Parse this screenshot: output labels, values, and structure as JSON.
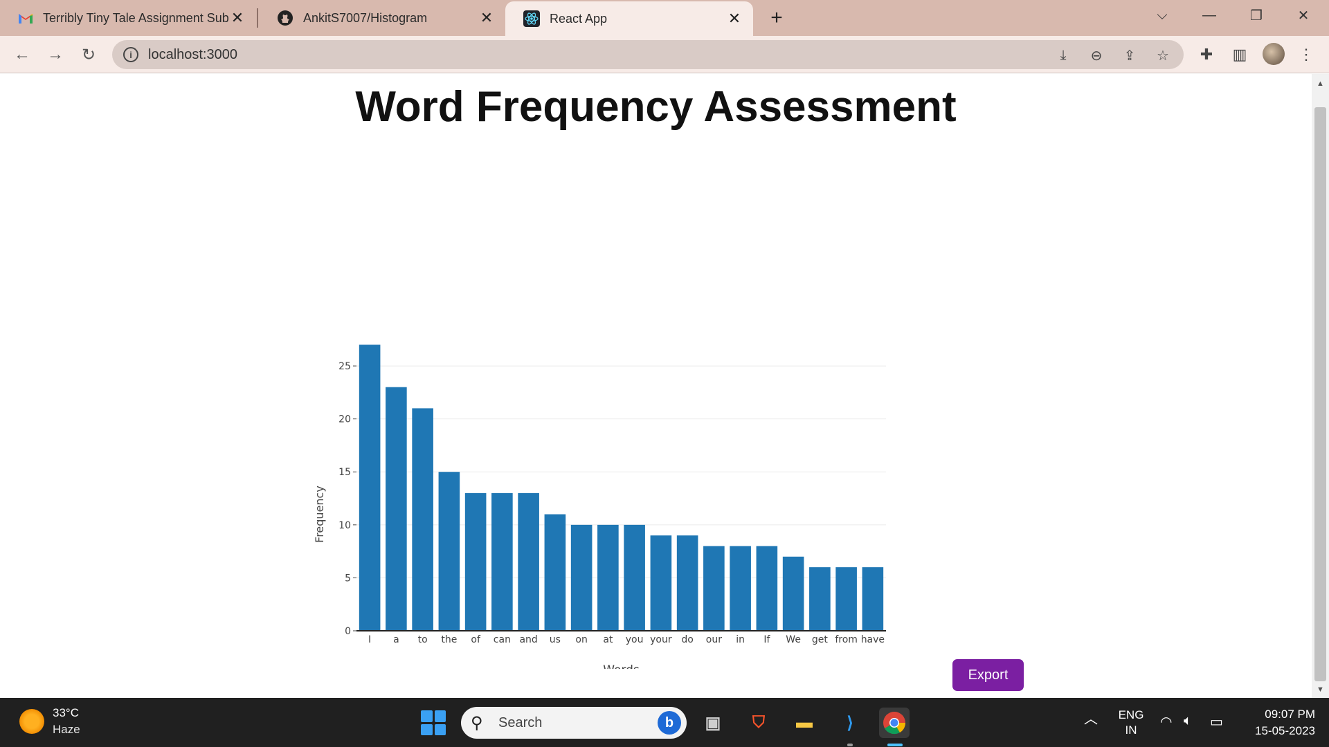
{
  "browser": {
    "tabs": [
      {
        "title": "Terribly Tiny Tale Assignment Sub",
        "icon": "gmail-icon"
      },
      {
        "title": "AnkitS7007/Histogram",
        "icon": "github-icon"
      },
      {
        "title": "React App",
        "icon": "react-icon",
        "active": true
      }
    ],
    "url": "localhost:3000"
  },
  "page": {
    "title": "Word Frequency Assessment",
    "export_label": "Export"
  },
  "chart_data": {
    "type": "bar",
    "categories": [
      "I",
      "a",
      "to",
      "the",
      "of",
      "can",
      "and",
      "us",
      "on",
      "at",
      "you",
      "your",
      "do",
      "our",
      "in",
      "If",
      "We",
      "get",
      "from",
      "have"
    ],
    "values": [
      27,
      23,
      21,
      15,
      13,
      13,
      13,
      11,
      10,
      10,
      10,
      9,
      9,
      8,
      8,
      8,
      7,
      6,
      6,
      6
    ],
    "xlabel": "Words",
    "ylabel": "Frequency",
    "yticks": [
      0,
      5,
      10,
      15,
      20,
      25
    ],
    "ylim": [
      0,
      28.4
    ],
    "grid": true,
    "bar_color": "#1f77b4"
  },
  "taskbar": {
    "weather_temp": "33°C",
    "weather_cond": "Haze",
    "search_placeholder": "Search",
    "lang_top": "ENG",
    "lang_bottom": "IN",
    "time": "09:07 PM",
    "date": "15-05-2023"
  },
  "colors": {
    "tabstrip": "#d8b9ae",
    "toolbar": "#f7ebe7",
    "export_button": "#7b1fa2",
    "taskbar": "#202020"
  }
}
